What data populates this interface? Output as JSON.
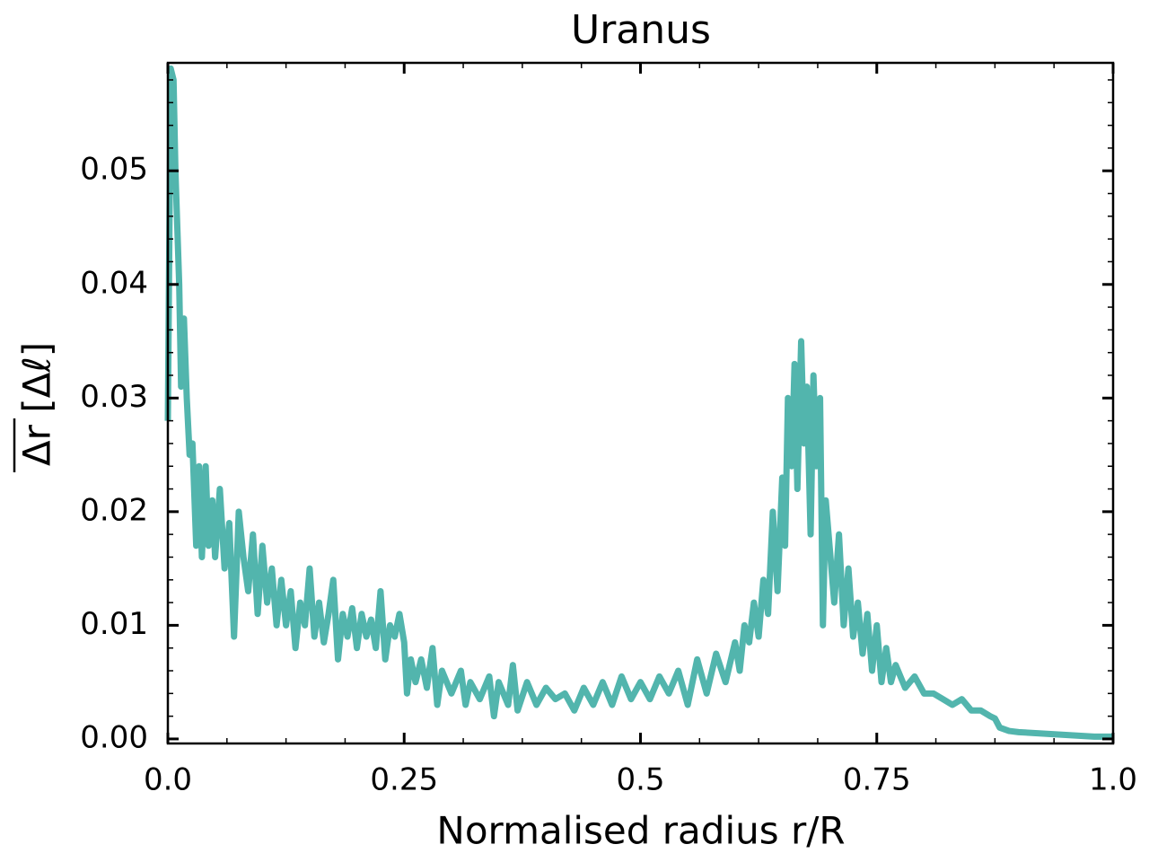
{
  "chart_data": {
    "type": "line",
    "title": "Uranus",
    "xlabel": "Normalised radius r/R",
    "ylabel": "Δr [Δℓ]",
    "x": [
      0.0,
      0.003,
      0.006,
      0.008,
      0.01,
      0.012,
      0.014,
      0.017,
      0.02,
      0.023,
      0.026,
      0.03,
      0.033,
      0.036,
      0.04,
      0.043,
      0.047,
      0.05,
      0.055,
      0.06,
      0.065,
      0.07,
      0.075,
      0.08,
      0.085,
      0.09,
      0.095,
      0.1,
      0.105,
      0.11,
      0.115,
      0.12,
      0.125,
      0.13,
      0.135,
      0.14,
      0.145,
      0.15,
      0.155,
      0.16,
      0.165,
      0.17,
      0.175,
      0.18,
      0.185,
      0.19,
      0.195,
      0.2,
      0.205,
      0.21,
      0.215,
      0.22,
      0.225,
      0.23,
      0.235,
      0.24,
      0.245,
      0.25,
      0.253,
      0.257,
      0.262,
      0.268,
      0.274,
      0.28,
      0.285,
      0.29,
      0.3,
      0.31,
      0.315,
      0.32,
      0.33,
      0.34,
      0.345,
      0.35,
      0.36,
      0.365,
      0.37,
      0.38,
      0.39,
      0.4,
      0.41,
      0.42,
      0.43,
      0.44,
      0.45,
      0.46,
      0.47,
      0.48,
      0.49,
      0.5,
      0.51,
      0.52,
      0.53,
      0.54,
      0.55,
      0.56,
      0.57,
      0.58,
      0.59,
      0.6,
      0.605,
      0.61,
      0.615,
      0.62,
      0.625,
      0.63,
      0.635,
      0.64,
      0.645,
      0.65,
      0.653,
      0.656,
      0.66,
      0.663,
      0.666,
      0.67,
      0.673,
      0.676,
      0.68,
      0.683,
      0.686,
      0.69,
      0.693,
      0.696,
      0.7,
      0.705,
      0.71,
      0.715,
      0.72,
      0.725,
      0.73,
      0.735,
      0.74,
      0.745,
      0.75,
      0.755,
      0.76,
      0.765,
      0.77,
      0.78,
      0.79,
      0.8,
      0.81,
      0.82,
      0.83,
      0.84,
      0.85,
      0.86,
      0.87,
      0.875,
      0.88,
      0.89,
      0.9,
      0.92,
      0.94,
      0.96,
      0.98,
      1.0
    ],
    "series": [
      {
        "color": "#52b5ad",
        "values": [
          0.028,
          0.059,
          0.058,
          0.05,
          0.045,
          0.04,
          0.031,
          0.037,
          0.03,
          0.025,
          0.026,
          0.017,
          0.024,
          0.016,
          0.024,
          0.017,
          0.021,
          0.016,
          0.022,
          0.015,
          0.019,
          0.009,
          0.02,
          0.016,
          0.013,
          0.018,
          0.011,
          0.017,
          0.012,
          0.015,
          0.01,
          0.014,
          0.01,
          0.013,
          0.008,
          0.012,
          0.01,
          0.015,
          0.009,
          0.012,
          0.0085,
          0.011,
          0.014,
          0.007,
          0.011,
          0.009,
          0.0115,
          0.008,
          0.011,
          0.009,
          0.0105,
          0.008,
          0.013,
          0.007,
          0.01,
          0.009,
          0.011,
          0.0085,
          0.004,
          0.007,
          0.005,
          0.007,
          0.0045,
          0.008,
          0.003,
          0.006,
          0.004,
          0.006,
          0.003,
          0.005,
          0.0035,
          0.0055,
          0.002,
          0.005,
          0.003,
          0.0065,
          0.0025,
          0.005,
          0.003,
          0.0045,
          0.0035,
          0.004,
          0.0025,
          0.0045,
          0.003,
          0.005,
          0.003,
          0.0055,
          0.0035,
          0.005,
          0.0035,
          0.0055,
          0.004,
          0.006,
          0.003,
          0.007,
          0.004,
          0.0075,
          0.005,
          0.0085,
          0.006,
          0.01,
          0.0085,
          0.012,
          0.009,
          0.014,
          0.011,
          0.02,
          0.013,
          0.023,
          0.017,
          0.03,
          0.024,
          0.033,
          0.022,
          0.035,
          0.026,
          0.031,
          0.018,
          0.032,
          0.024,
          0.03,
          0.01,
          0.021,
          0.017,
          0.012,
          0.018,
          0.01,
          0.015,
          0.009,
          0.012,
          0.0075,
          0.011,
          0.006,
          0.01,
          0.005,
          0.008,
          0.005,
          0.0065,
          0.0045,
          0.0055,
          0.004,
          0.004,
          0.0035,
          0.003,
          0.0035,
          0.0025,
          0.0025,
          0.002,
          0.0018,
          0.001,
          0.0007,
          0.0006,
          0.0005,
          0.0004,
          0.0003,
          0.0002,
          0.0002
        ]
      }
    ],
    "xlim": [
      0,
      1
    ],
    "ylim": [
      -0.0004,
      0.0595
    ],
    "xticks": [
      {
        "value": 0,
        "label": "0.0"
      },
      0.25,
      0.5,
      0.75,
      {
        "value": 1,
        "label": "1.0"
      }
    ],
    "yticks": [
      {
        "value": 0,
        "label": "0.00"
      },
      0.01,
      0.02,
      0.03,
      0.04,
      0.05
    ],
    "minor_ticks": {
      "x": 4,
      "y": 5
    }
  }
}
